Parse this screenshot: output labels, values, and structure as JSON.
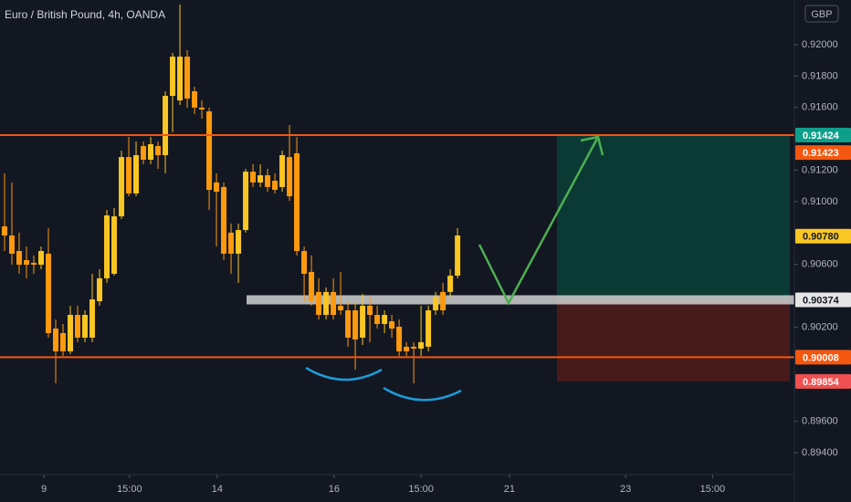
{
  "chart_data": {
    "type": "candlestick",
    "title": "Euro / British Pound, 4h, OANDA",
    "currency": "GBP",
    "up_color": "#f9c623",
    "down_color": "#ff9a0e",
    "open": [
      0.90842,
      0.90784,
      0.90685,
      0.90627,
      0.9061,
      0.90598,
      0.90668,
      0.90191,
      0.90162,
      0.90046,
      0.90278,
      0.90133,
      0.90133,
      0.90365,
      0.90511,
      0.9054,
      0.90906,
      0.91284,
      0.91052,
      0.91354,
      0.91267,
      0.91354,
      0.91296,
      0.91674,
      0.91645,
      0.91924,
      0.91703,
      0.91599,
      0.91575,
      0.91122,
      0.91093,
      0.90802,
      0.90668,
      0.90819,
      0.91191,
      0.91122,
      0.91168,
      0.91133,
      0.91093,
      0.91284,
      0.91308,
      0.90685,
      0.90552,
      0.90424,
      0.90278,
      0.90424,
      0.90336,
      0.90307,
      0.90307,
      0.90133,
      0.90336,
      0.90278,
      0.9022,
      0.90237,
      0.90203,
      0.90075,
      0.90075,
      0.90063,
      0.90075,
      0.90307,
      0.90424,
      0.90424,
      0.90528
    ],
    "high": [
      0.9118,
      0.91122,
      0.90802,
      0.90714,
      0.90657,
      0.90714,
      0.90831,
      0.90249,
      0.9022,
      0.90336,
      0.90336,
      0.90307,
      0.9054,
      0.90569,
      0.90947,
      0.90959,
      0.91325,
      0.91412,
      0.91383,
      0.91383,
      0.91412,
      0.91383,
      0.91703,
      0.91948,
      0.92256,
      0.91965,
      0.91732,
      0.91645,
      0.91599,
      0.9118,
      0.91122,
      0.9086,
      0.9086,
      0.91209,
      0.91238,
      0.91238,
      0.91209,
      0.9118,
      0.91325,
      0.91488,
      0.91412,
      0.90714,
      0.90657,
      0.90511,
      0.90453,
      0.90511,
      0.90552,
      0.90365,
      0.90365,
      0.90412,
      0.90394,
      0.90336,
      0.90307,
      0.90278,
      0.90249,
      0.90104,
      0.90104,
      0.90336,
      0.90336,
      0.90424,
      0.90482,
      0.90569,
      0.90831
    ],
    "low": [
      0.90685,
      0.90598,
      0.9054,
      0.90511,
      0.9054,
      0.90569,
      0.90133,
      0.89842,
      0.90016,
      0.90028,
      0.90104,
      0.90104,
      0.90104,
      0.90336,
      0.90482,
      0.90528,
      0.90889,
      0.91034,
      0.91034,
      0.91238,
      0.91238,
      0.91209,
      0.9118,
      0.91442,
      0.91616,
      0.91599,
      0.91558,
      0.91529,
      0.90947,
      0.90714,
      0.90627,
      0.9054,
      0.90482,
      0.90802,
      0.91093,
      0.91093,
      0.91063,
      0.91052,
      0.91063,
      0.91005,
      0.90657,
      0.90365,
      0.90336,
      0.90249,
      0.90249,
      0.90249,
      0.90278,
      0.90075,
      0.89929,
      0.90086,
      0.90104,
      0.90191,
      0.90162,
      0.90133,
      0.90016,
      0.90016,
      0.89842,
      0.90016,
      0.90046,
      0.90278,
      0.90278,
      0.90394,
      0.90511
    ],
    "close": [
      0.90784,
      0.90668,
      0.90598,
      0.90598,
      0.90598,
      0.90685,
      0.90162,
      0.90046,
      0.90046,
      0.90278,
      0.90133,
      0.90278,
      0.90377,
      0.90511,
      0.90912,
      0.90906,
      0.91284,
      0.91052,
      0.91296,
      0.91267,
      0.91366,
      0.91296,
      0.91674,
      0.91924,
      0.91924,
      0.91657,
      0.91599,
      0.91587,
      0.91075,
      0.91063,
      0.90668,
      0.90668,
      0.90819,
      0.91191,
      0.91122,
      0.91168,
      0.91093,
      0.91075,
      0.91296,
      0.91034,
      0.90685,
      0.9054,
      0.90365,
      0.90278,
      0.90424,
      0.90278,
      0.90307,
      0.90133,
      0.90121,
      0.90336,
      0.90278,
      0.9022,
      0.90278,
      0.90191,
      0.90046,
      0.90046,
      0.90063,
      0.90104,
      0.90307,
      0.90394,
      0.90307,
      0.90528,
      0.90784
    ],
    "xlim": [
      -0.625,
      108.1
    ],
    "xticks": [
      {
        "value": 5.4,
        "label": "9"
      },
      {
        "value": 17.1,
        "label": "15:00"
      },
      {
        "value": 29.1,
        "label": "14"
      },
      {
        "value": 45.1,
        "label": "16"
      },
      {
        "value": 57.0,
        "label": "15:00"
      },
      {
        "value": 69.1,
        "label": "21"
      },
      {
        "value": 85.0,
        "label": "23"
      },
      {
        "value": 96.9,
        "label": "15:00"
      }
    ],
    "ylim": [
      0.8926,
      0.92285
    ],
    "yticks": [
      {
        "value": 0.92,
        "label": "0.92000"
      },
      {
        "value": 0.918,
        "label": "0.91800"
      },
      {
        "value": 0.916,
        "label": "0.91600"
      },
      {
        "value": 0.912,
        "label": "0.91200"
      },
      {
        "value": 0.91,
        "label": "0.91000"
      },
      {
        "value": 0.906,
        "label": "0.90600"
      },
      {
        "value": 0.902,
        "label": "0.90200"
      },
      {
        "value": 0.896,
        "label": "0.89600"
      },
      {
        "value": 0.894,
        "label": "0.89400"
      }
    ],
    "price_labels": [
      {
        "value": 0.91424,
        "label": "0.91424",
        "color": "#0e9f8a",
        "text_color": "#ffffff"
      },
      {
        "value": 0.91423,
        "label": "0.91423",
        "color": "#f5570f",
        "text_color": "#ffffff"
      },
      {
        "value": 0.9078,
        "label": "0.90780",
        "color": "#f9c623",
        "text_color": "#131722"
      },
      {
        "value": 0.90374,
        "label": "0.90374",
        "color": "#e6e6e6",
        "text_color": "#131722"
      },
      {
        "value": 0.90008,
        "label": "0.90008",
        "color": "#f5570f",
        "text_color": "#ffffff"
      },
      {
        "value": 0.89854,
        "label": "0.89854",
        "color": "#f0504f",
        "text_color": "#ffffff"
      }
    ]
  }
}
